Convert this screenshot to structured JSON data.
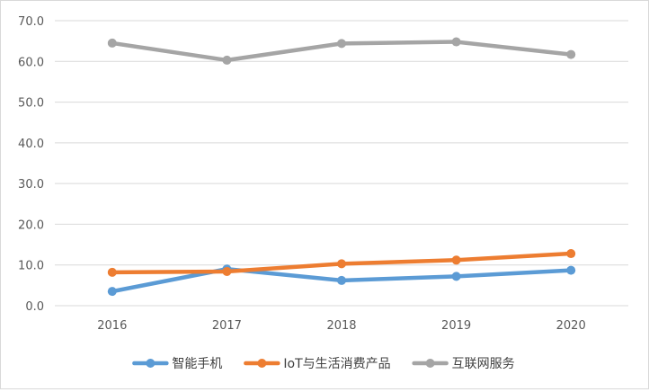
{
  "chart_data": {
    "type": "line",
    "title": "",
    "xlabel": "",
    "ylabel": "",
    "x": [
      "2016",
      "2017",
      "2018",
      "2019",
      "2020"
    ],
    "ylim": [
      0,
      70
    ],
    "yticks": [
      "0.0",
      "10.0",
      "20.0",
      "30.0",
      "40.0",
      "50.0",
      "60.0",
      "70.0"
    ],
    "grid": true,
    "legend_position": "bottom",
    "series": [
      {
        "name": "智能手机",
        "values": [
          3.5,
          9.0,
          6.2,
          7.2,
          8.7
        ],
        "color": "#5b9bd5"
      },
      {
        "name": "IoT与生活消费产品",
        "values": [
          8.2,
          8.4,
          10.3,
          11.2,
          12.8
        ],
        "color": "#ed7d31"
      },
      {
        "name": "互联网服务",
        "values": [
          64.5,
          60.3,
          64.4,
          64.8,
          61.7
        ],
        "color": "#a5a5a5"
      }
    ]
  },
  "colors": {
    "grid": "#d9d9d9",
    "axis_text": "#595959",
    "legend_text": "#404040"
  }
}
